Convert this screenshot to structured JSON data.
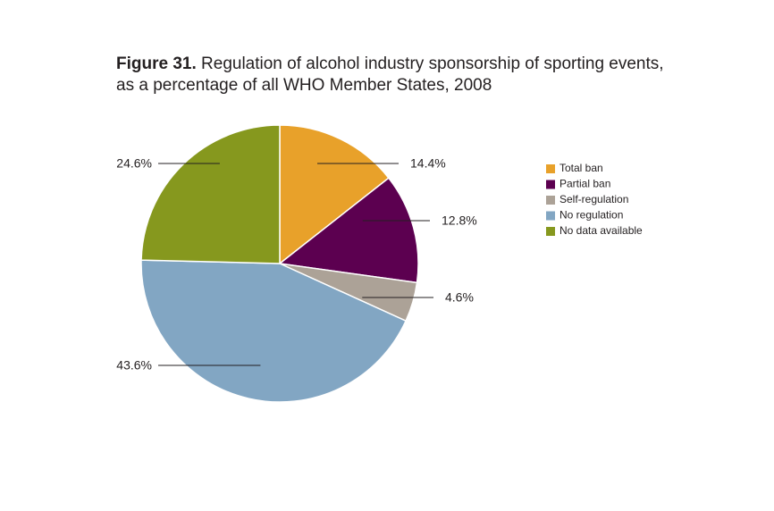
{
  "figure": {
    "label": "Figure 31.",
    "title_line1": " Regulation of alcohol industry sponsorship of sporting events,",
    "title_line2": "as a percentage of all WHO Member States, 2008"
  },
  "chart_data": {
    "type": "pie",
    "title": "Figure 31. Regulation of alcohol industry sponsorship of sporting events, as a percentage of all WHO Member States, 2008",
    "start_angle": "12 o'clock",
    "direction": "clockwise",
    "legend_position": "right",
    "slices": [
      {
        "label": "Total ban",
        "value": 14.4,
        "value_label": "14.4%",
        "color": "#e8a12a"
      },
      {
        "label": "Partial ban",
        "value": 12.8,
        "value_label": "12.8%",
        "color": "#5c0050"
      },
      {
        "label": "Self-regulation",
        "value": 4.6,
        "value_label": "4.6%",
        "color": "#aca297"
      },
      {
        "label": "No regulation",
        "value": 43.6,
        "value_label": "43.6%",
        "color": "#82a6c3"
      },
      {
        "label": "No data available",
        "value": 24.6,
        "value_label": "24.6%",
        "color": "#86981e"
      }
    ]
  }
}
